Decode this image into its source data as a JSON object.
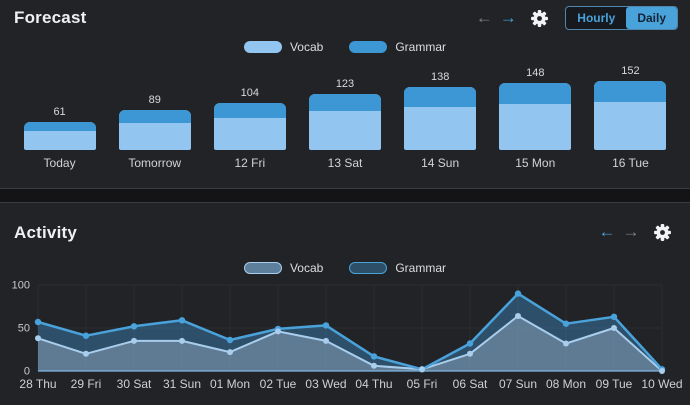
{
  "forecast": {
    "title": "Forecast",
    "toggle": {
      "options": [
        "Hourly",
        "Daily"
      ],
      "selected": "Daily"
    }
  },
  "activity": {
    "title": "Activity"
  },
  "icons": {
    "arrow_left": "←",
    "arrow_right": "→"
  },
  "colors": {
    "panel_bg": "#222327",
    "page_bg": "#141416",
    "accent_blue": "#4aa2db",
    "vocab_light_blue": "#92c5f0",
    "grammar_blue": "#3e97d5",
    "inactive_arrow_gray": "#7d8186",
    "gridline": "#2b2d31",
    "baseline": "#5b7f9d"
  },
  "chart_data": [
    {
      "id": "forecast",
      "type": "bar",
      "stacked": true,
      "title": "Forecast",
      "categories": [
        "Today",
        "Tomorrow",
        "12 Fri",
        "13 Sat",
        "14 Sun",
        "15 Mon",
        "16 Tue"
      ],
      "totals": [
        61,
        89,
        104,
        123,
        138,
        148,
        152
      ],
      "series": [
        {
          "name": "Vocab",
          "color": "#92c5f0",
          "values": [
            42,
            61,
            72,
            85,
            95,
            102,
            105
          ]
        },
        {
          "name": "Grammar",
          "color": "#3e97d5",
          "values": [
            19,
            28,
            32,
            38,
            43,
            46,
            47
          ]
        }
      ],
      "data_labels": "totals shown above each bar",
      "legend_position": "top-center",
      "grid": false
    },
    {
      "id": "activity",
      "type": "area",
      "stacked": true,
      "title": "Activity",
      "categories": [
        "28 Thu",
        "29 Fri",
        "30 Sat",
        "31 Sun",
        "01 Mon",
        "02 Tue",
        "03 Wed",
        "04 Thu",
        "05 Fri",
        "06 Sat",
        "07 Sun",
        "08 Mon",
        "09 Tue",
        "10 Wed"
      ],
      "series": [
        {
          "name": "Vocab",
          "color": "#a9cdec",
          "fill": "rgba(136,182,222,0.6)",
          "swatch_fill": "#5d7f9b",
          "swatch_border": "#a9cdec",
          "values": [
            38,
            20,
            35,
            35,
            22,
            46,
            35,
            6,
            2,
            20,
            64,
            32,
            50,
            0
          ]
        },
        {
          "name": "Grammar",
          "color": "#4aa2db",
          "fill": "rgba(61,140,199,0.42)",
          "swatch_fill": "#2d4f68",
          "swatch_border": "#4aa2db",
          "values": [
            19,
            21,
            17,
            24,
            14,
            3,
            18,
            11,
            0,
            12,
            26,
            23,
            13,
            2
          ]
        }
      ],
      "stacked_totals": [
        57,
        41,
        52,
        59,
        36,
        49,
        53,
        17,
        2,
        32,
        90,
        55,
        63,
        2
      ],
      "ylim": [
        0,
        100
      ],
      "yticks": [
        0,
        50,
        100
      ],
      "legend_position": "top-center",
      "grid": true
    }
  ]
}
